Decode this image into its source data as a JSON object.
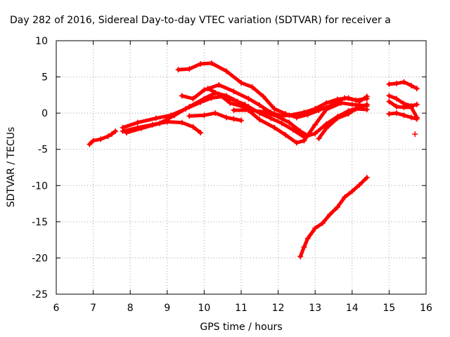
{
  "chart_data": {
    "type": "scatter",
    "title": "Day 282 of 2016, Sidereal Day-to-day VTEC variation (SDTVAR) for receiver a",
    "xlabel": "GPS time / hours",
    "ylabel": "SDTVAR / TECUs",
    "xlim": [
      6,
      16
    ],
    "ylim": [
      -25,
      10
    ],
    "xticks": [
      "6",
      "7",
      "8",
      "9",
      "10",
      "11",
      "12",
      "13",
      "14",
      "15",
      "16"
    ],
    "yticks": [
      "10",
      "5",
      "0",
      "-5",
      "-10",
      "-15",
      "-20",
      "-25"
    ],
    "grid": true,
    "color": "#ff0000",
    "marker": "plus",
    "series": [
      {
        "points": [
          [
            6.9,
            -4.3
          ],
          [
            7.0,
            -3.8
          ],
          [
            7.2,
            -3.6
          ],
          [
            7.4,
            -3.2
          ],
          [
            7.5,
            -2.9
          ],
          [
            7.6,
            -2.5
          ]
        ]
      },
      {
        "points": [
          [
            7.8,
            -2.0
          ],
          [
            8.2,
            -1.3
          ],
          [
            8.7,
            -0.7
          ],
          [
            9.1,
            -0.3
          ],
          [
            9.5,
            0.6
          ],
          [
            9.9,
            1.5
          ],
          [
            10.2,
            2.1
          ],
          [
            10.5,
            2.3
          ],
          [
            10.8,
            1.8
          ],
          [
            11.1,
            1.2
          ]
        ]
      },
      {
        "points": [
          [
            7.8,
            -2.5
          ],
          [
            8.2,
            -2.0
          ],
          [
            8.6,
            -1.6
          ],
          [
            9.0,
            -1.2
          ],
          [
            9.4,
            -1.3
          ],
          [
            9.7,
            -1.9
          ],
          [
            9.9,
            -2.7
          ]
        ]
      },
      {
        "points": [
          [
            7.9,
            -2.7
          ],
          [
            8.3,
            -2.1
          ],
          [
            8.8,
            -1.4
          ],
          [
            9.2,
            -0.3
          ],
          [
            9.6,
            0.9
          ],
          [
            10.0,
            2.0
          ],
          [
            10.3,
            2.8
          ],
          [
            10.6,
            2.4
          ],
          [
            10.9,
            1.6
          ],
          [
            11.2,
            0.9
          ],
          [
            11.5,
            0.0
          ],
          [
            11.8,
            -0.7
          ],
          [
            12.1,
            -1.4
          ],
          [
            12.4,
            -2.3
          ],
          [
            12.7,
            -3.3
          ],
          [
            13.0,
            -2.8
          ],
          [
            13.3,
            -1.5
          ],
          [
            13.6,
            -0.5
          ],
          [
            13.9,
            0.3
          ],
          [
            14.2,
            0.8
          ],
          [
            14.4,
            1.2
          ]
        ]
      },
      {
        "points": [
          [
            9.3,
            6.0
          ],
          [
            9.6,
            6.1
          ],
          [
            9.9,
            6.8
          ],
          [
            10.2,
            6.9
          ],
          [
            10.6,
            5.8
          ],
          [
            11.0,
            4.2
          ],
          [
            11.3,
            3.6
          ],
          [
            11.6,
            2.3
          ],
          [
            11.9,
            0.6
          ],
          [
            12.2,
            -0.1
          ],
          [
            12.5,
            -0.6
          ],
          [
            12.8,
            -0.2
          ],
          [
            13.1,
            0.4
          ],
          [
            13.4,
            1.0
          ],
          [
            13.8,
            2.1
          ],
          [
            14.1,
            1.8
          ],
          [
            14.4,
            2.0
          ]
        ]
      },
      {
        "points": [
          [
            9.4,
            2.4
          ],
          [
            9.7,
            2.0
          ],
          [
            10.0,
            3.2
          ],
          [
            10.4,
            3.9
          ],
          [
            10.8,
            3.0
          ],
          [
            11.2,
            2.0
          ],
          [
            11.5,
            1.1
          ],
          [
            11.8,
            0.1
          ],
          [
            12.1,
            -0.4
          ],
          [
            12.3,
            -0.3
          ],
          [
            12.7,
            0.1
          ],
          [
            13.0,
            0.6
          ],
          [
            13.3,
            1.4
          ],
          [
            13.6,
            1.9
          ],
          [
            13.9,
            2.1
          ],
          [
            14.2,
            1.6
          ],
          [
            14.4,
            2.3
          ]
        ]
      },
      {
        "points": [
          [
            10.1,
            3.4
          ],
          [
            10.4,
            2.6
          ],
          [
            10.7,
            1.4
          ],
          [
            11.1,
            0.8
          ],
          [
            11.5,
            -0.9
          ],
          [
            11.9,
            -2.0
          ],
          [
            12.2,
            -3.0
          ],
          [
            12.5,
            -4.1
          ],
          [
            12.7,
            -3.8
          ],
          [
            13.0,
            -1.6
          ],
          [
            13.3,
            0.5
          ],
          [
            13.7,
            1.4
          ],
          [
            14.0,
            1.2
          ],
          [
            14.4,
            1.0
          ]
        ]
      },
      {
        "points": [
          [
            9.6,
            -0.4
          ],
          [
            10.0,
            -0.3
          ],
          [
            10.3,
            0.0
          ],
          [
            10.6,
            -0.6
          ],
          [
            11.0,
            -1.0
          ],
          [
            10.8,
            -0.8
          ]
        ]
      },
      {
        "points": [
          [
            10.8,
            0.4
          ],
          [
            11.2,
            0.4
          ],
          [
            11.6,
            0.2
          ],
          [
            12.0,
            -0.5
          ],
          [
            12.3,
            -1.3
          ],
          [
            12.6,
            -2.5
          ],
          [
            12.8,
            -3.1
          ]
        ]
      },
      {
        "points": [
          [
            13.1,
            -3.5
          ],
          [
            13.3,
            -2.1
          ],
          [
            13.6,
            -0.7
          ],
          [
            13.9,
            -0.1
          ],
          [
            14.1,
            0.6
          ],
          [
            14.4,
            0.5
          ]
        ]
      },
      {
        "points": [
          [
            12.6,
            -19.8
          ],
          [
            12.7,
            -18.5
          ],
          [
            12.8,
            -17.3
          ],
          [
            13.0,
            -15.9
          ],
          [
            13.2,
            -15.2
          ],
          [
            13.4,
            -14.0
          ],
          [
            13.6,
            -13.0
          ],
          [
            13.8,
            -11.6
          ],
          [
            14.0,
            -10.8
          ],
          [
            14.2,
            -9.9
          ],
          [
            14.4,
            -8.9
          ]
        ]
      },
      {
        "points": [
          [
            15.0,
            4.0
          ],
          [
            15.2,
            4.1
          ],
          [
            15.4,
            4.3
          ],
          [
            15.6,
            3.8
          ],
          [
            15.75,
            3.4
          ]
        ]
      },
      {
        "points": [
          [
            15.0,
            2.4
          ],
          [
            15.2,
            2.0
          ],
          [
            15.4,
            1.3
          ],
          [
            15.6,
            1.0
          ],
          [
            15.75,
            1.2
          ]
        ]
      },
      {
        "points": [
          [
            15.0,
            1.6
          ],
          [
            15.2,
            0.9
          ],
          [
            15.4,
            0.8
          ],
          [
            15.6,
            0.8
          ],
          [
            15.75,
            -0.6
          ]
        ]
      },
      {
        "points": [
          [
            15.0,
            -0.1
          ],
          [
            15.2,
            0.0
          ],
          [
            15.4,
            -0.3
          ],
          [
            15.6,
            -0.6
          ],
          [
            15.75,
            -0.8
          ]
        ]
      },
      {
        "points": [
          [
            15.7,
            -2.9
          ]
        ]
      }
    ]
  }
}
